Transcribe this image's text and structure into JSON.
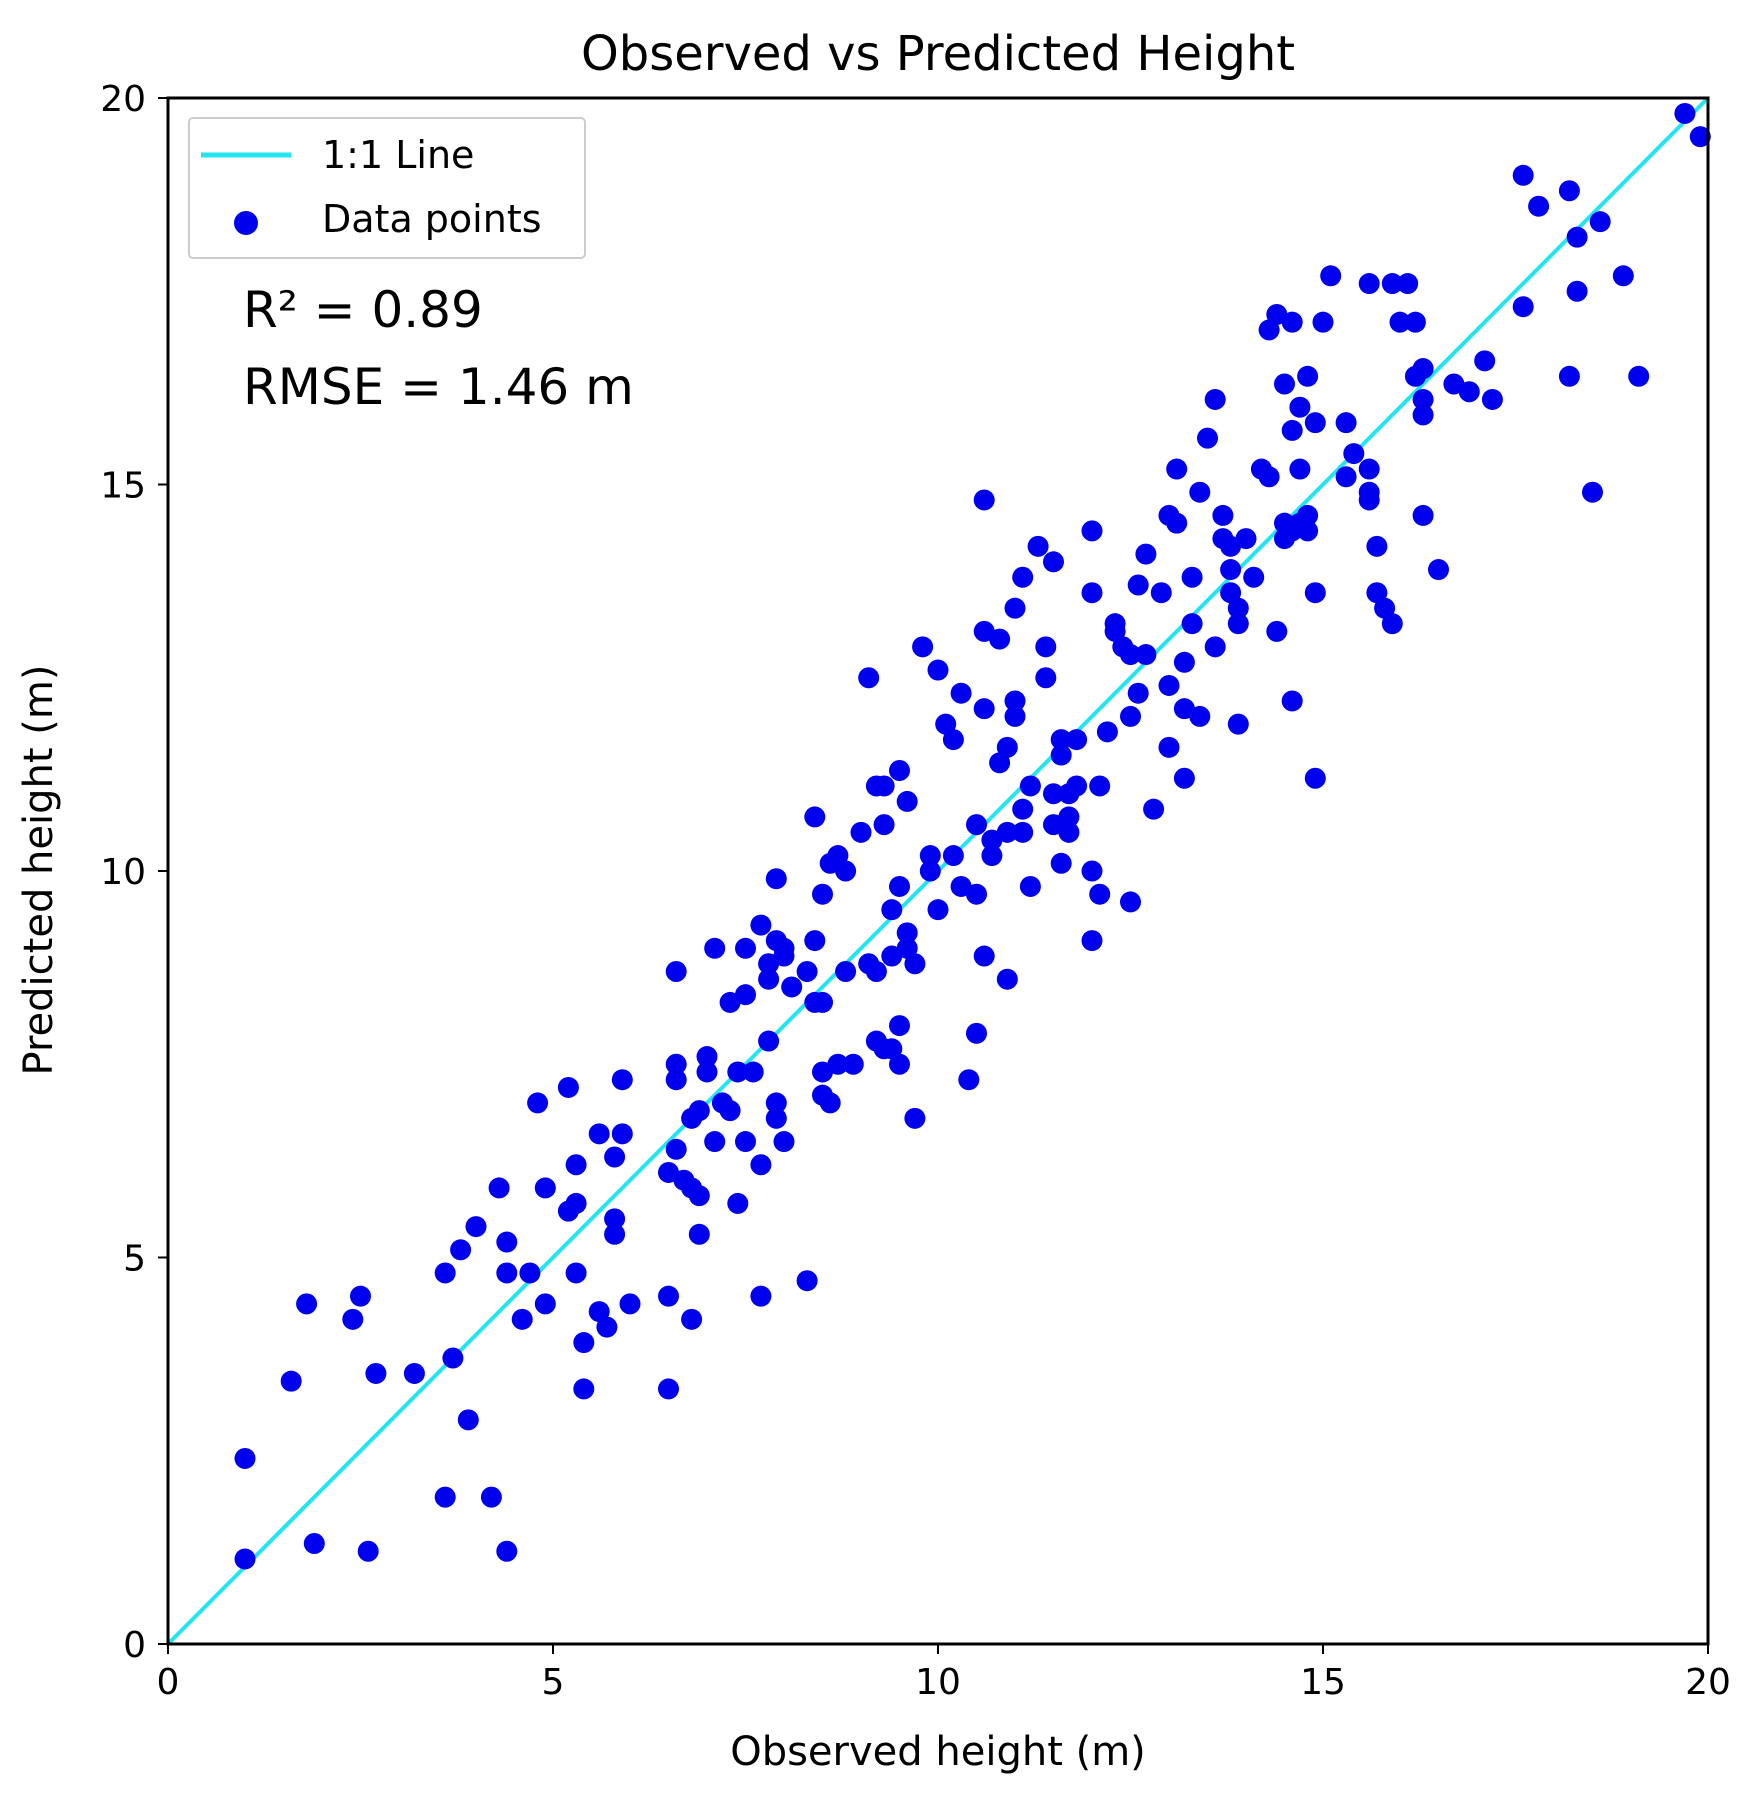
{
  "chart_data": {
    "type": "scatter",
    "title": "Observed vs Predicted Height",
    "xlabel": "Observed height (m)",
    "ylabel": "Predicted height (m)",
    "xlim": [
      0,
      20
    ],
    "ylim": [
      0,
      20
    ],
    "x_ticks": [
      0,
      5,
      10,
      15,
      20
    ],
    "y_ticks": [
      0,
      5,
      10,
      15,
      20
    ],
    "x_tick_labels": [
      "0",
      "5",
      "10",
      "15",
      "20"
    ],
    "y_tick_labels": [
      "0",
      "5",
      "10",
      "15",
      "20"
    ],
    "grid": false,
    "legend_position": "top-left",
    "annotations": [
      "R² = 0.89",
      "RMSE = 1.46 m"
    ],
    "series": [
      {
        "name": "1:1 Line",
        "type": "line",
        "color": "#22e5ef",
        "x": [
          0,
          20
        ],
        "y": [
          0,
          20
        ]
      },
      {
        "name": "Data points",
        "type": "scatter",
        "color": "#0000ee",
        "points": [
          [
            1.0,
            2.4
          ],
          [
            1.0,
            1.1
          ],
          [
            1.6,
            3.4
          ],
          [
            1.8,
            4.4
          ],
          [
            1.9,
            1.3
          ],
          [
            2.4,
            4.2
          ],
          [
            2.5,
            4.5
          ],
          [
            2.6,
            1.2
          ],
          [
            2.7,
            3.5
          ],
          [
            3.2,
            3.5
          ],
          [
            3.6,
            4.8
          ],
          [
            3.6,
            1.9
          ],
          [
            3.7,
            3.7
          ],
          [
            3.8,
            5.1
          ],
          [
            3.9,
            2.9
          ],
          [
            4.0,
            5.4
          ],
          [
            4.2,
            1.9
          ],
          [
            4.3,
            5.9
          ],
          [
            4.4,
            5.2
          ],
          [
            4.4,
            4.8
          ],
          [
            4.4,
            1.2
          ],
          [
            4.6,
            4.2
          ],
          [
            4.7,
            4.8
          ],
          [
            4.8,
            7.0
          ],
          [
            4.9,
            4.4
          ],
          [
            4.9,
            5.9
          ],
          [
            5.2,
            5.6
          ],
          [
            5.2,
            7.2
          ],
          [
            5.3,
            5.7
          ],
          [
            5.3,
            6.2
          ],
          [
            5.3,
            4.8
          ],
          [
            5.4,
            3.9
          ],
          [
            5.4,
            3.3
          ],
          [
            5.6,
            6.6
          ],
          [
            5.6,
            4.3
          ],
          [
            5.7,
            4.1
          ],
          [
            5.8,
            6.3
          ],
          [
            5.8,
            5.3
          ],
          [
            5.8,
            5.5
          ],
          [
            5.9,
            6.6
          ],
          [
            5.9,
            7.3
          ],
          [
            6.0,
            4.4
          ],
          [
            6.5,
            6.1
          ],
          [
            6.5,
            4.5
          ],
          [
            6.5,
            3.3
          ],
          [
            6.6,
            8.7
          ],
          [
            6.6,
            7.5
          ],
          [
            6.6,
            7.3
          ],
          [
            6.6,
            6.4
          ],
          [
            6.7,
            6.0
          ],
          [
            6.8,
            5.9
          ],
          [
            6.8,
            4.2
          ],
          [
            6.8,
            6.8
          ],
          [
            6.9,
            6.9
          ],
          [
            6.9,
            5.8
          ],
          [
            6.9,
            5.3
          ],
          [
            7.0,
            7.6
          ],
          [
            7.0,
            7.4
          ],
          [
            7.1,
            9.0
          ],
          [
            7.1,
            6.5
          ],
          [
            7.2,
            7.0
          ],
          [
            7.3,
            6.9
          ],
          [
            7.3,
            8.3
          ],
          [
            7.4,
            7.4
          ],
          [
            7.4,
            5.7
          ],
          [
            7.5,
            8.4
          ],
          [
            7.5,
            9.0
          ],
          [
            7.5,
            6.5
          ],
          [
            7.6,
            7.4
          ],
          [
            7.7,
            9.3
          ],
          [
            7.7,
            6.2
          ],
          [
            7.7,
            4.5
          ],
          [
            7.8,
            8.8
          ],
          [
            7.8,
            8.6
          ],
          [
            7.8,
            7.8
          ],
          [
            7.9,
            9.9
          ],
          [
            7.9,
            9.1
          ],
          [
            7.9,
            7.0
          ],
          [
            7.9,
            6.8
          ],
          [
            8.0,
            9.0
          ],
          [
            8.0,
            8.9
          ],
          [
            8.0,
            6.5
          ],
          [
            8.1,
            8.5
          ],
          [
            8.3,
            8.7
          ],
          [
            8.3,
            4.7
          ],
          [
            8.4,
            10.7
          ],
          [
            8.4,
            9.1
          ],
          [
            8.4,
            8.3
          ],
          [
            8.5,
            9.7
          ],
          [
            8.5,
            8.3
          ],
          [
            8.5,
            7.4
          ],
          [
            8.5,
            7.1
          ],
          [
            8.6,
            10.1
          ],
          [
            8.6,
            7.0
          ],
          [
            8.7,
            10.2
          ],
          [
            8.7,
            7.5
          ],
          [
            8.8,
            10.0
          ],
          [
            8.8,
            8.7
          ],
          [
            8.9,
            7.5
          ],
          [
            9.0,
            10.5
          ],
          [
            9.1,
            12.5
          ],
          [
            9.1,
            8.8
          ],
          [
            9.2,
            11.1
          ],
          [
            9.2,
            8.7
          ],
          [
            9.2,
            7.8
          ],
          [
            9.3,
            11.1
          ],
          [
            9.3,
            10.6
          ],
          [
            9.3,
            7.7
          ],
          [
            9.4,
            9.5
          ],
          [
            9.4,
            8.9
          ],
          [
            9.4,
            7.7
          ],
          [
            9.5,
            11.3
          ],
          [
            9.5,
            9.8
          ],
          [
            9.5,
            8.0
          ],
          [
            9.5,
            7.5
          ],
          [
            9.6,
            10.9
          ],
          [
            9.6,
            9.2
          ],
          [
            9.6,
            9.0
          ],
          [
            9.7,
            8.8
          ],
          [
            9.7,
            6.8
          ],
          [
            9.8,
            12.9
          ],
          [
            9.9,
            10.2
          ],
          [
            9.9,
            10.0
          ],
          [
            10.0,
            12.6
          ],
          [
            10.0,
            9.5
          ],
          [
            10.1,
            11.9
          ],
          [
            10.2,
            11.7
          ],
          [
            10.2,
            10.2
          ],
          [
            10.3,
            12.3
          ],
          [
            10.3,
            9.8
          ],
          [
            10.4,
            7.3
          ],
          [
            10.5,
            10.6
          ],
          [
            10.5,
            9.7
          ],
          [
            10.5,
            7.9
          ],
          [
            10.6,
            14.8
          ],
          [
            10.6,
            13.1
          ],
          [
            10.6,
            12.1
          ],
          [
            10.6,
            8.9
          ],
          [
            10.7,
            10.4
          ],
          [
            10.7,
            10.2
          ],
          [
            10.8,
            13.0
          ],
          [
            10.8,
            11.4
          ],
          [
            10.9,
            11.6
          ],
          [
            10.9,
            10.5
          ],
          [
            10.9,
            8.6
          ],
          [
            11.0,
            13.4
          ],
          [
            11.0,
            12.2
          ],
          [
            11.0,
            12.0
          ],
          [
            11.1,
            13.8
          ],
          [
            11.1,
            10.8
          ],
          [
            11.1,
            10.5
          ],
          [
            11.2,
            11.1
          ],
          [
            11.2,
            9.8
          ],
          [
            11.3,
            14.2
          ],
          [
            11.4,
            12.5
          ],
          [
            11.4,
            12.9
          ],
          [
            11.5,
            14.0
          ],
          [
            11.5,
            11.0
          ],
          [
            11.5,
            10.6
          ],
          [
            11.6,
            11.7
          ],
          [
            11.6,
            11.5
          ],
          [
            11.6,
            10.1
          ],
          [
            11.7,
            11.0
          ],
          [
            11.7,
            10.7
          ],
          [
            11.7,
            10.5
          ],
          [
            11.8,
            11.7
          ],
          [
            11.8,
            11.1
          ],
          [
            12.0,
            14.4
          ],
          [
            12.0,
            13.6
          ],
          [
            12.0,
            10.0
          ],
          [
            12.0,
            9.1
          ],
          [
            12.1,
            11.1
          ],
          [
            12.1,
            9.7
          ],
          [
            12.2,
            11.8
          ],
          [
            12.3,
            13.2
          ],
          [
            12.3,
            13.1
          ],
          [
            12.4,
            12.9
          ],
          [
            12.5,
            12.8
          ],
          [
            12.5,
            12.0
          ],
          [
            12.5,
            9.6
          ],
          [
            12.6,
            13.7
          ],
          [
            12.6,
            12.3
          ],
          [
            12.7,
            14.1
          ],
          [
            12.7,
            12.8
          ],
          [
            12.8,
            10.8
          ],
          [
            12.9,
            13.6
          ],
          [
            13.0,
            14.6
          ],
          [
            13.0,
            11.6
          ],
          [
            13.0,
            12.4
          ],
          [
            13.1,
            14.5
          ],
          [
            13.1,
            15.2
          ],
          [
            13.2,
            12.7
          ],
          [
            13.2,
            12.1
          ],
          [
            13.2,
            11.2
          ],
          [
            13.3,
            13.8
          ],
          [
            13.3,
            13.2
          ],
          [
            13.4,
            14.9
          ],
          [
            13.4,
            12.0
          ],
          [
            13.5,
            15.6
          ],
          [
            13.6,
            16.1
          ],
          [
            13.6,
            12.9
          ],
          [
            13.7,
            14.6
          ],
          [
            13.7,
            14.3
          ],
          [
            13.8,
            14.2
          ],
          [
            13.8,
            13.9
          ],
          [
            13.8,
            13.6
          ],
          [
            13.9,
            13.4
          ],
          [
            13.9,
            13.2
          ],
          [
            13.9,
            11.9
          ],
          [
            14.0,
            14.3
          ],
          [
            14.1,
            13.8
          ],
          [
            14.2,
            15.2
          ],
          [
            14.3,
            17.0
          ],
          [
            14.3,
            15.1
          ],
          [
            14.4,
            17.2
          ],
          [
            14.4,
            13.1
          ],
          [
            14.5,
            16.3
          ],
          [
            14.5,
            14.5
          ],
          [
            14.5,
            14.3
          ],
          [
            14.6,
            17.1
          ],
          [
            14.6,
            15.7
          ],
          [
            14.6,
            14.4
          ],
          [
            14.6,
            12.2
          ],
          [
            14.7,
            16.0
          ],
          [
            14.7,
            15.2
          ],
          [
            14.7,
            14.5
          ],
          [
            14.8,
            16.4
          ],
          [
            14.8,
            14.6
          ],
          [
            14.8,
            14.4
          ],
          [
            14.9,
            15.8
          ],
          [
            14.9,
            13.6
          ],
          [
            14.9,
            11.2
          ],
          [
            15.0,
            17.1
          ],
          [
            15.1,
            17.7
          ],
          [
            15.3,
            15.8
          ],
          [
            15.3,
            15.1
          ],
          [
            15.4,
            15.4
          ],
          [
            15.6,
            17.6
          ],
          [
            15.6,
            15.2
          ],
          [
            15.6,
            14.9
          ],
          [
            15.6,
            14.8
          ],
          [
            15.7,
            13.6
          ],
          [
            15.7,
            14.2
          ],
          [
            15.8,
            13.4
          ],
          [
            15.9,
            17.6
          ],
          [
            15.9,
            13.2
          ],
          [
            16.0,
            17.1
          ],
          [
            16.1,
            17.6
          ],
          [
            16.2,
            16.4
          ],
          [
            16.2,
            17.1
          ],
          [
            16.3,
            16.5
          ],
          [
            16.3,
            16.1
          ],
          [
            16.3,
            15.9
          ],
          [
            16.3,
            14.6
          ],
          [
            16.5,
            13.9
          ],
          [
            16.7,
            16.3
          ],
          [
            16.9,
            16.2
          ],
          [
            17.1,
            16.6
          ],
          [
            17.2,
            16.1
          ],
          [
            17.6,
            19.0
          ],
          [
            17.6,
            17.3
          ],
          [
            17.8,
            18.6
          ],
          [
            18.2,
            16.4
          ],
          [
            18.2,
            18.8
          ],
          [
            18.3,
            18.2
          ],
          [
            18.3,
            17.5
          ],
          [
            18.5,
            14.9
          ],
          [
            18.6,
            18.4
          ],
          [
            18.9,
            17.7
          ],
          [
            19.1,
            16.4
          ],
          [
            19.7,
            19.8
          ],
          [
            19.9,
            19.5
          ]
        ]
      }
    ]
  }
}
